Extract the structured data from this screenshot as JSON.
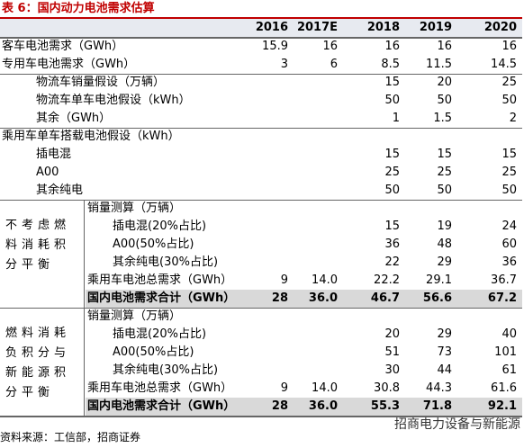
{
  "title": "表 6：国内动力电池需求估算",
  "header": [
    "2016",
    "2017E",
    "2018",
    "2019",
    "2020"
  ],
  "rows": [
    {
      "label": "客车电池需求（GWh）",
      "values": [
        "15.9",
        "16",
        "16",
        "16",
        "16"
      ]
    },
    {
      "label": "专用车电池需求（GWh）",
      "values": [
        "3",
        "6",
        "8.5",
        "11.5",
        "14.5"
      ]
    },
    {
      "label": "物流车销量假设（万辆）",
      "values": [
        null,
        null,
        "15",
        "20",
        "25"
      ]
    },
    {
      "label": "物流车单车电池假设（kWh）",
      "values": [
        null,
        null,
        "50",
        "50",
        "50"
      ]
    },
    {
      "label": "其余（GWh）",
      "values": [
        null,
        null,
        "1",
        "1.5",
        "2"
      ]
    },
    {
      "label": "乘用车单车搭载电池假设（kWh）",
      "values": [
        null,
        null,
        null,
        null,
        null
      ]
    },
    {
      "label": "插电混",
      "values": [
        null,
        null,
        "15",
        "15",
        "15"
      ]
    },
    {
      "label": "A00",
      "values": [
        null,
        null,
        "25",
        "25",
        "25"
      ]
    },
    {
      "label": "其余纯电",
      "values": [
        null,
        null,
        "50",
        "50",
        "50"
      ]
    }
  ],
  "sections": [
    {
      "label": "不考虑燃料消耗积分平衡",
      "rows": [
        {
          "label": "销量测算（万辆）",
          "values": [
            null,
            null,
            null,
            null,
            null
          ]
        },
        {
          "label": "插电混(20%占比)",
          "values": [
            null,
            null,
            "15",
            "19",
            "24"
          ]
        },
        {
          "label": "A00(50%占比)",
          "values": [
            null,
            null,
            "36",
            "48",
            "60"
          ]
        },
        {
          "label": "其余纯电(30%占比)",
          "values": [
            null,
            null,
            "22",
            "29",
            "36"
          ]
        },
        {
          "label": "乘用车电池总需求（GWh）",
          "values": [
            "9",
            "14.0",
            "22.2",
            "29.1",
            "36.7"
          ]
        },
        {
          "label": "国内电池需求合计（GWh）",
          "values": [
            "28",
            "36.0",
            "46.7",
            "56.6",
            "67.2"
          ]
        }
      ]
    },
    {
      "label": "燃料消耗负积分与新能源积分平衡",
      "rows": [
        {
          "label": "销量测算（万辆）",
          "values": [
            null,
            null,
            null,
            null,
            null
          ]
        },
        {
          "label": "插电混(20%占比)",
          "values": [
            null,
            null,
            "20",
            "29",
            "40"
          ]
        },
        {
          "label": "A00(50%占比)",
          "values": [
            null,
            null,
            "51",
            "73",
            "101"
          ]
        },
        {
          "label": "其余纯电(30%占比)",
          "values": [
            null,
            null,
            "30",
            "44",
            "61"
          ]
        },
        {
          "label": "乘用车电池总需求（GWh）",
          "values": [
            "9",
            "14.0",
            "30.8",
            "44.3",
            "61.6"
          ]
        },
        {
          "label": "国内电池需求合计（GWh）",
          "values": [
            "28",
            "36.0",
            "55.3",
            "71.8",
            "92.1"
          ]
        }
      ]
    }
  ],
  "source": "资料来源：工信部，招商证券",
  "watermark": "招商电力设备与新能源"
}
